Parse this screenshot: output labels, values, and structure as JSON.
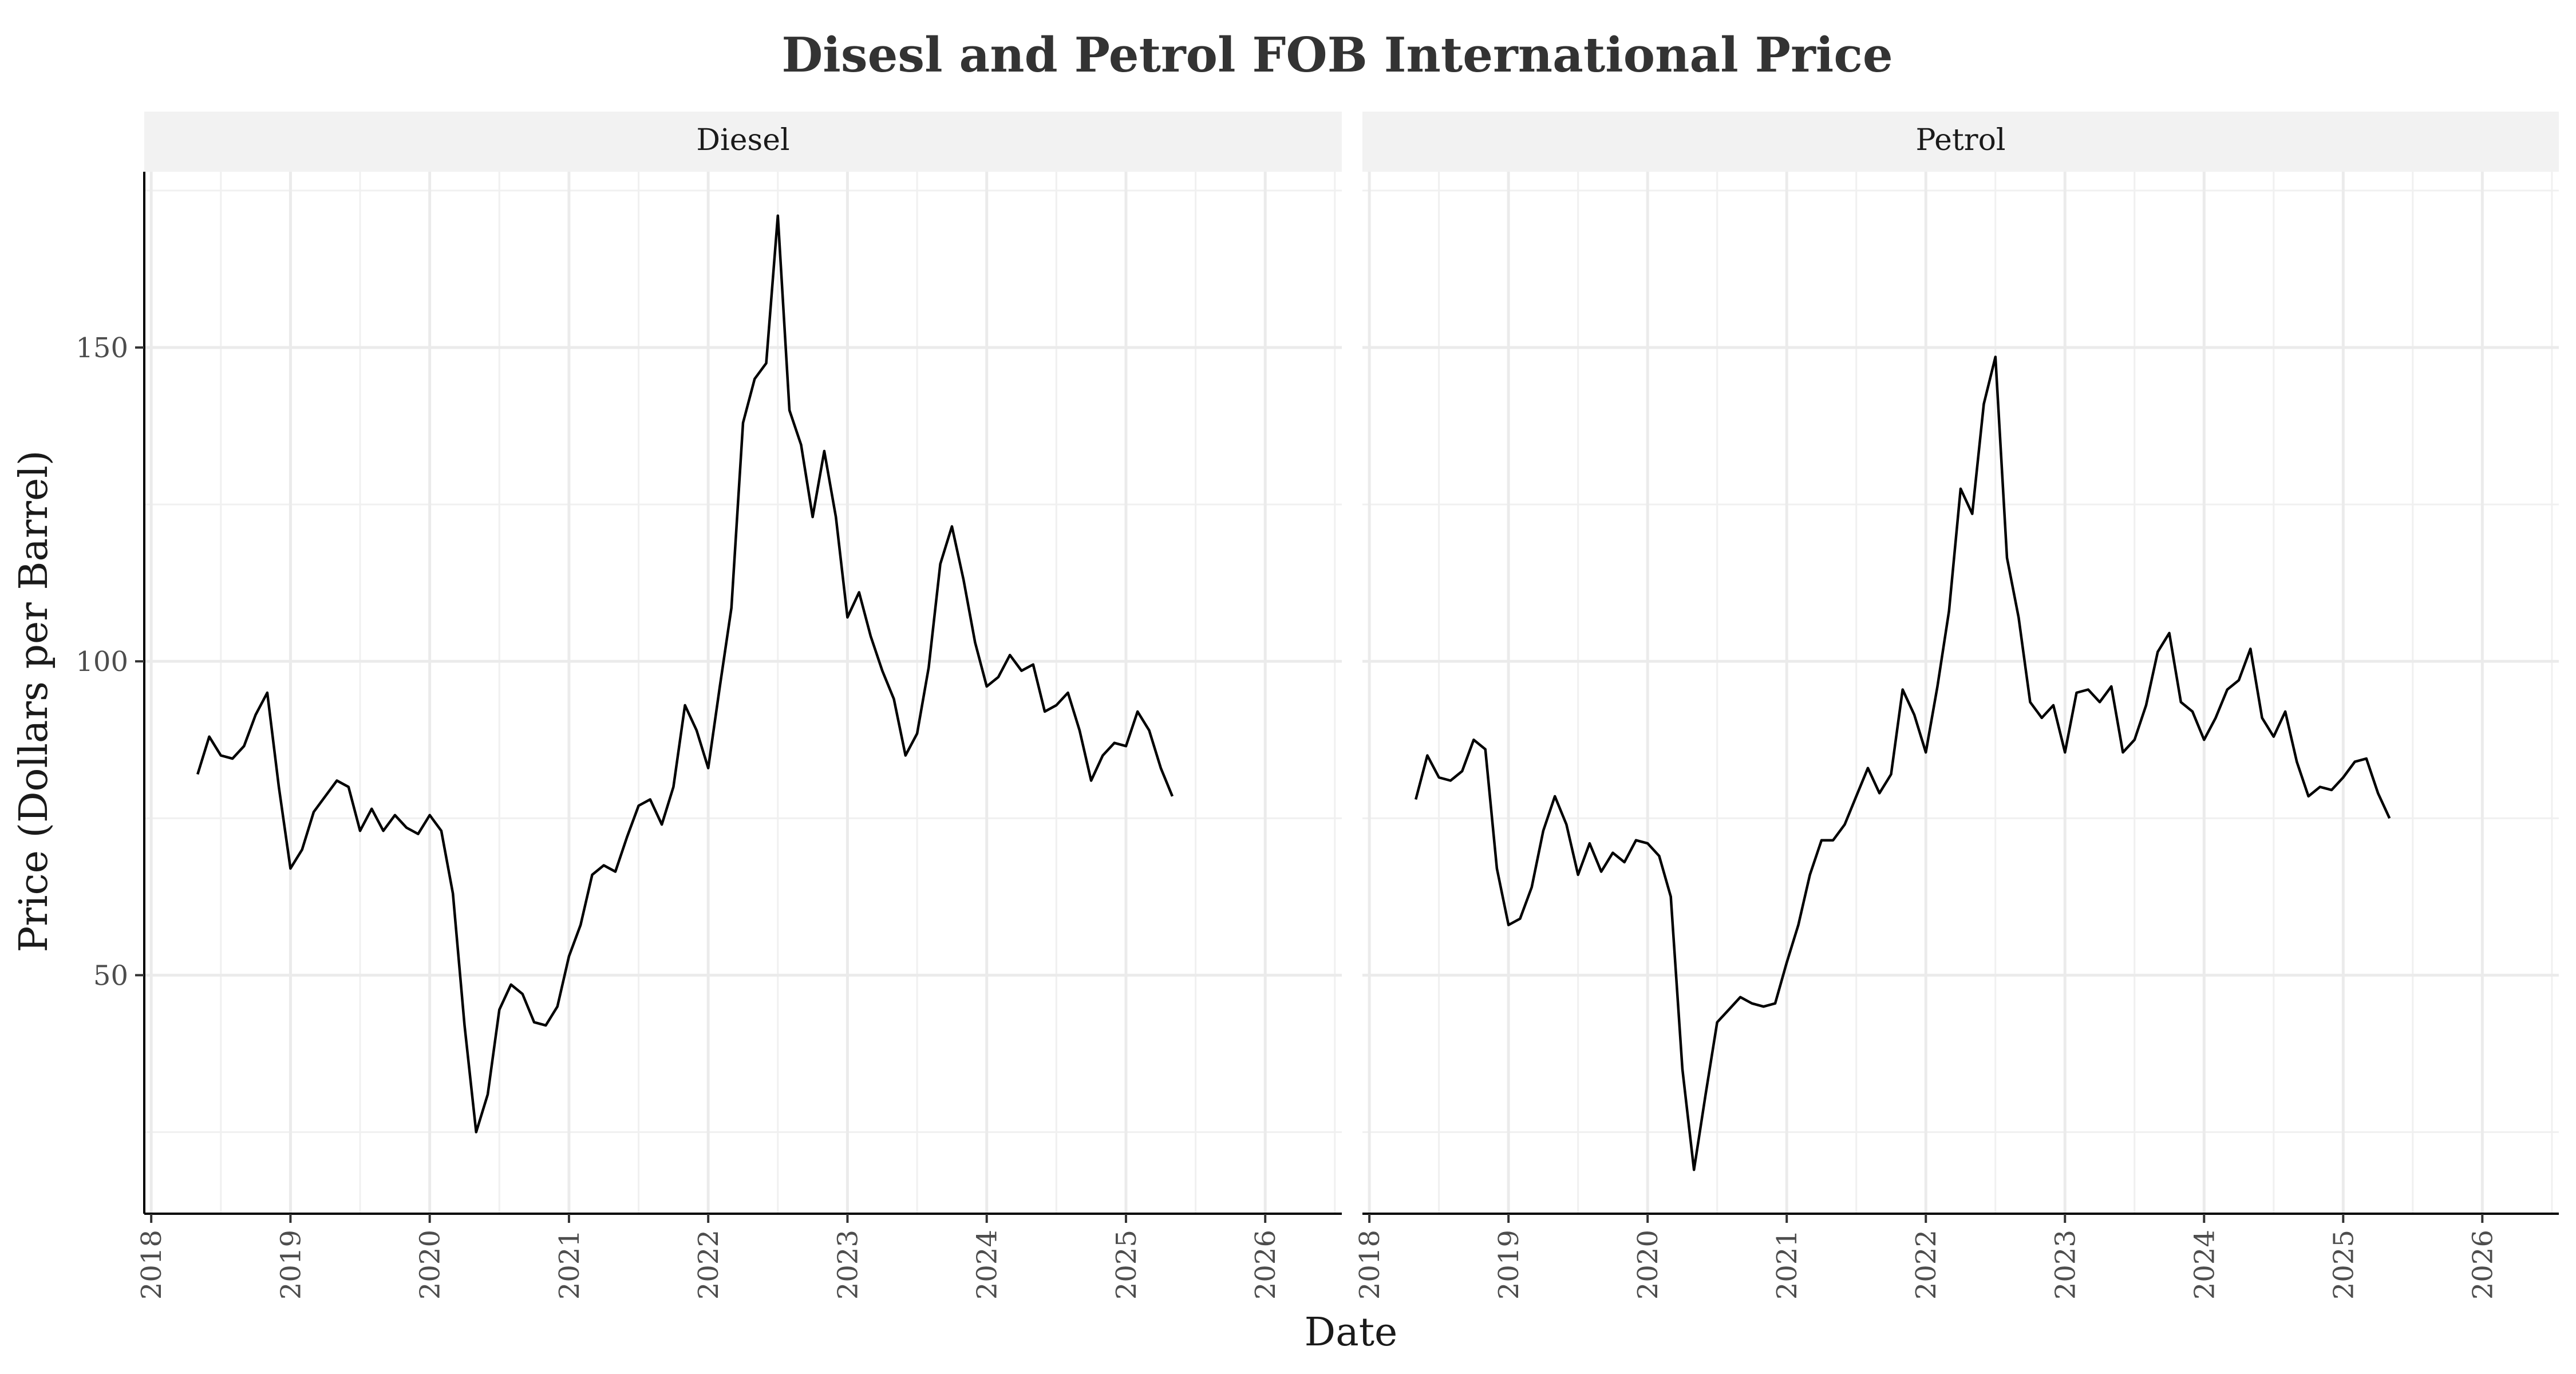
{
  "chart_data": {
    "type": "line",
    "title": "Disesl and Petrol FOB International Price",
    "xlabel": "Date",
    "ylabel": "Price (Dollars per Barrel)",
    "x_tick_labels": [
      "2018",
      "2019",
      "2020",
      "2021",
      "2022",
      "2023",
      "2024",
      "2025",
      "2026"
    ],
    "y_ticks": [
      50,
      100,
      150
    ],
    "xlim": [
      2017.95,
      2026.55
    ],
    "ylim": [
      12,
      178
    ],
    "grid": true,
    "line_color": "#000000",
    "panels": [
      {
        "name": "Diesel",
        "start_date": "2018-05",
        "values": [
          82,
          88,
          85,
          84.5,
          86.5,
          91.5,
          95,
          80,
          67,
          70,
          76,
          78.5,
          81,
          80,
          73,
          76.5,
          73,
          75.5,
          73.5,
          72.5,
          75.5,
          73,
          63,
          42,
          25,
          31,
          44.5,
          48.5,
          47,
          42.5,
          42,
          45,
          53,
          58,
          66,
          67.5,
          66.5,
          72,
          77,
          78,
          74,
          80,
          93,
          89,
          83,
          96,
          108.5,
          138,
          145,
          147.5,
          171,
          140,
          134.5,
          123,
          133.5,
          123,
          107,
          111,
          104,
          98.5,
          94,
          85,
          88.5,
          99,
          115.5,
          121.5,
          113,
          103,
          96,
          97.5,
          101,
          98.5,
          99.5,
          92,
          93,
          95,
          89,
          81,
          85,
          87,
          86.5,
          92,
          89,
          83,
          78.5
        ]
      },
      {
        "name": "Petrol",
        "start_date": "2018-05",
        "values": [
          78,
          85,
          81.5,
          81,
          82.5,
          87.5,
          86,
          67,
          58,
          59,
          64,
          73,
          78.5,
          74,
          66,
          71,
          66.5,
          69.5,
          68,
          71.5,
          71,
          69,
          62.5,
          35,
          19,
          31,
          42.5,
          44.5,
          46.5,
          45.5,
          45,
          45.5,
          52,
          58,
          66,
          71.5,
          71.5,
          74,
          78.5,
          83,
          79,
          82,
          95.5,
          91.5,
          85.5,
          96,
          108,
          127.5,
          123.5,
          141,
          148.5,
          116.5,
          107,
          93.5,
          91,
          93,
          85.5,
          95,
          95.5,
          93.5,
          96,
          85.5,
          87.5,
          93,
          101.5,
          104.5,
          93.5,
          92,
          87.5,
          91,
          95.5,
          97,
          102,
          91,
          88,
          92,
          84,
          78.5,
          80,
          79.5,
          81.5,
          84,
          84.5,
          79,
          75
        ]
      }
    ]
  }
}
